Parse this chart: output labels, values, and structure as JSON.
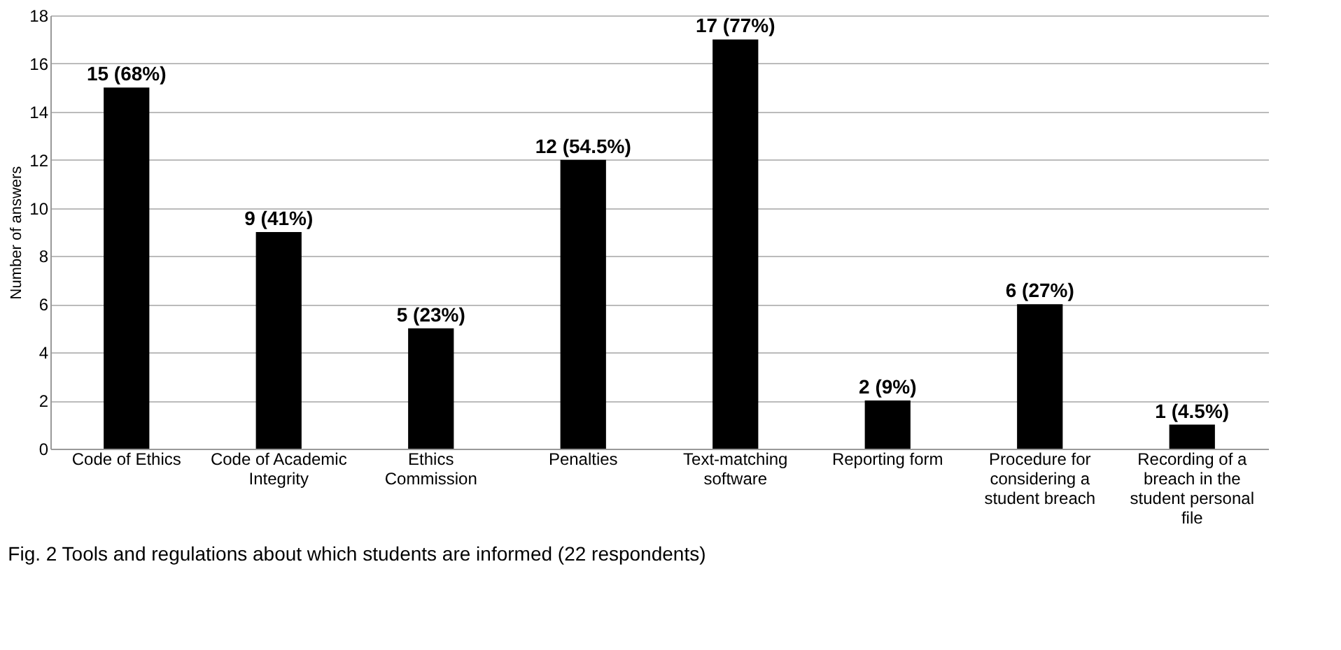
{
  "chart_data": {
    "type": "bar",
    "categories": [
      "Code of Ethics",
      "Code of Academic Integrity",
      "Ethics Commission",
      "Penalties",
      "Text-matching software",
      "Reporting form",
      "Procedure for considering a student breach",
      "Recording of a breach in the student personal file"
    ],
    "values": [
      15,
      9,
      5,
      12,
      17,
      2,
      6,
      1
    ],
    "value_labels": [
      "15 (68%)",
      "9 (41%)",
      "5 (23%)",
      "12 (54.5%)",
      "17 (77%)",
      "2 (9%)",
      "6 (27%)",
      "1 (4.5%)"
    ],
    "color": "#000000",
    "ylabel": "Number of answers",
    "ylim": [
      0,
      18
    ],
    "yticks": [
      0,
      2,
      4,
      6,
      8,
      10,
      12,
      14,
      16,
      18
    ],
    "grid": "y",
    "annotations": [
      "Fig. 2 Tools and regulations about which students are informed (22 respondents)"
    ]
  }
}
